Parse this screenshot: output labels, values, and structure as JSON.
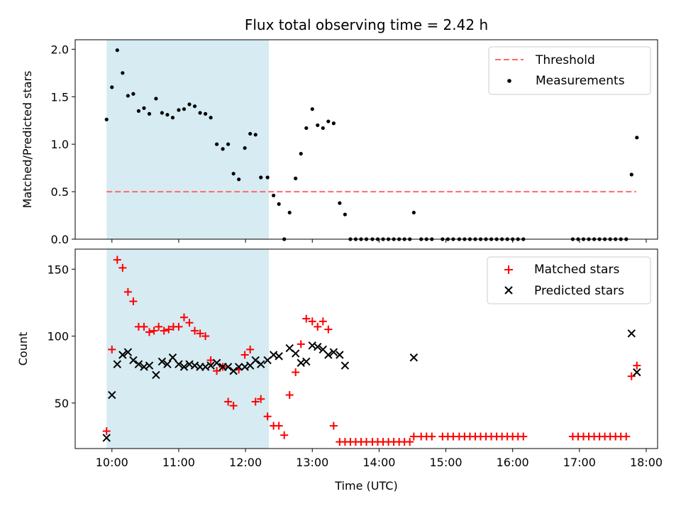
{
  "chart_data": [
    {
      "type": "scatter",
      "title": "Flux total observing time = 2.42 h",
      "ylabel": "Matched/Predicted stars",
      "xlim": [
        9.45,
        18.17
      ],
      "ylim": [
        0,
        2.1
      ],
      "yticks": [
        0.0,
        0.5,
        1.0,
        1.5,
        2.0
      ],
      "ytick_labels": [
        "0.0",
        "0.5",
        "1.0",
        "1.5",
        "2.0"
      ],
      "shaded_span": {
        "x_start": 9.92,
        "x_end": 12.35,
        "color": "#add8e6"
      },
      "threshold": {
        "name": "Threshold",
        "value": 0.5,
        "x_start": 9.92,
        "x_end": 17.85,
        "color": "#ff6b6b"
      },
      "legend": {
        "placement": "top-right",
        "entries": [
          "Threshold",
          "Measurements"
        ]
      },
      "series": [
        {
          "name": "Measurements",
          "marker": "dot",
          "color": "#000000",
          "x": [
            9.92,
            10.0,
            10.08,
            10.16,
            10.24,
            10.32,
            10.4,
            10.48,
            10.56,
            10.66,
            10.75,
            10.83,
            10.91,
            11.0,
            11.08,
            11.16,
            11.24,
            11.32,
            11.4,
            11.48,
            11.57,
            11.66,
            11.74,
            11.82,
            11.9,
            11.99,
            12.07,
            12.15,
            12.23,
            12.33,
            12.42,
            12.5,
            12.58,
            12.66,
            12.75,
            12.83,
            12.91,
            13.0,
            13.08,
            13.16,
            13.24,
            13.32,
            13.41,
            13.49,
            13.57,
            13.65,
            13.73,
            13.81,
            13.9,
            13.98,
            14.06,
            14.14,
            14.22,
            14.3,
            14.38,
            14.46,
            14.52,
            14.63,
            14.71,
            14.79,
            14.95,
            15.03,
            15.11,
            15.2,
            15.28,
            15.36,
            15.44,
            15.52,
            15.6,
            15.68,
            15.76,
            15.84,
            15.92,
            16.0,
            16.08,
            16.16,
            16.9,
            16.98,
            17.06,
            17.14,
            17.22,
            17.3,
            17.38,
            17.46,
            17.54,
            17.62,
            17.7,
            17.78,
            17.86
          ],
          "y": [
            1.26,
            1.6,
            1.99,
            1.75,
            1.51,
            1.53,
            1.35,
            1.38,
            1.32,
            1.48,
            1.33,
            1.31,
            1.28,
            1.36,
            1.37,
            1.42,
            1.4,
            1.33,
            1.32,
            1.28,
            1.0,
            0.95,
            1.0,
            0.69,
            0.63,
            0.96,
            1.11,
            1.1,
            0.65,
            0.65,
            0.46,
            0.37,
            0.0,
            0.28,
            0.64,
            0.9,
            1.17,
            1.37,
            1.2,
            1.17,
            1.24,
            1.22,
            0.38,
            0.26,
            0.0,
            0.0,
            0.0,
            0.0,
            0.0,
            0.0,
            0.0,
            0.0,
            0.0,
            0.0,
            0.0,
            0.0,
            0.28,
            0.0,
            0.0,
            0.0,
            0.0,
            0.0,
            0.0,
            0.0,
            0.0,
            0.0,
            0.0,
            0.0,
            0.0,
            0.0,
            0.0,
            0.0,
            0.0,
            0.0,
            0.0,
            0.0,
            0.0,
            0.0,
            0.0,
            0.0,
            0.0,
            0.0,
            0.0,
            0.0,
            0.0,
            0.0,
            0.0,
            0.68,
            1.07
          ]
        }
      ]
    },
    {
      "type": "scatter",
      "ylabel": "Count",
      "xlabel": "Time (UTC)",
      "xlim": [
        9.45,
        18.17
      ],
      "ylim": [
        16,
        165
      ],
      "xticks": [
        10,
        11,
        12,
        13,
        14,
        15,
        16,
        17,
        18
      ],
      "xtick_labels": [
        "10:00",
        "11:00",
        "12:00",
        "13:00",
        "14:00",
        "15:00",
        "16:00",
        "17:00",
        "18:00"
      ],
      "yticks": [
        50,
        100,
        150
      ],
      "ytick_labels": [
        "50",
        "100",
        "150"
      ],
      "shaded_span": {
        "x_start": 9.92,
        "x_end": 12.35,
        "color": "#add8e6"
      },
      "legend": {
        "placement": "top-right",
        "entries": [
          "Matched stars",
          "Predicted stars"
        ]
      },
      "series": [
        {
          "name": "Matched stars",
          "marker": "plus",
          "color": "#ff0000",
          "x": [
            9.92,
            10.0,
            10.08,
            10.16,
            10.24,
            10.32,
            10.4,
            10.48,
            10.56,
            10.63,
            10.7,
            10.78,
            10.85,
            10.92,
            11.0,
            11.08,
            11.16,
            11.24,
            11.32,
            11.4,
            11.48,
            11.57,
            11.66,
            11.74,
            11.82,
            11.9,
            11.99,
            12.07,
            12.15,
            12.23,
            12.33,
            12.42,
            12.5,
            12.58,
            12.66,
            12.75,
            12.83,
            12.91,
            13.0,
            13.08,
            13.16,
            13.24,
            13.32,
            13.41,
            13.49,
            13.57,
            13.65,
            13.73,
            13.81,
            13.9,
            13.98,
            14.06,
            14.14,
            14.22,
            14.3,
            14.38,
            14.46,
            14.52,
            14.63,
            14.71,
            14.79,
            14.95,
            15.03,
            15.11,
            15.2,
            15.28,
            15.36,
            15.44,
            15.52,
            15.6,
            15.68,
            15.76,
            15.84,
            15.92,
            16.0,
            16.08,
            16.16,
            16.9,
            16.98,
            17.06,
            17.14,
            17.22,
            17.3,
            17.38,
            17.46,
            17.54,
            17.62,
            17.7,
            17.78,
            17.86
          ],
          "y": [
            29,
            90,
            157,
            151,
            133,
            126,
            107,
            107,
            103,
            104,
            107,
            104,
            105,
            107,
            107,
            114,
            110,
            104,
            102,
            100,
            82,
            74,
            77,
            51,
            48,
            75,
            86,
            90,
            51,
            53,
            40,
            33,
            33,
            26,
            56,
            73,
            94,
            113,
            111,
            107,
            111,
            105,
            33,
            21,
            21,
            21,
            21,
            21,
            21,
            21,
            21,
            21,
            21,
            21,
            21,
            21,
            21,
            25,
            25,
            25,
            25,
            25,
            25,
            25,
            25,
            25,
            25,
            25,
            25,
            25,
            25,
            25,
            25,
            25,
            25,
            25,
            25,
            25,
            25,
            25,
            25,
            25,
            25,
            25,
            25,
            25,
            25,
            25,
            70,
            78
          ]
        },
        {
          "name": "Predicted stars",
          "marker": "x",
          "color": "#000000",
          "x": [
            9.92,
            10.0,
            10.08,
            10.16,
            10.24,
            10.32,
            10.4,
            10.48,
            10.56,
            10.66,
            10.75,
            10.83,
            10.91,
            11.0,
            11.08,
            11.16,
            11.24,
            11.32,
            11.4,
            11.48,
            11.57,
            11.66,
            11.74,
            11.82,
            11.9,
            11.99,
            12.07,
            12.15,
            12.23,
            12.33,
            12.42,
            12.5,
            12.66,
            12.75,
            12.83,
            12.91,
            13.0,
            13.08,
            13.16,
            13.24,
            13.32,
            13.41,
            13.49,
            14.52,
            17.78,
            17.86
          ],
          "y": [
            24,
            56,
            79,
            86,
            88,
            82,
            79,
            77,
            78,
            71,
            81,
            79,
            84,
            79,
            77,
            79,
            78,
            77,
            77,
            78,
            80,
            77,
            77,
            74,
            77,
            77,
            78,
            82,
            79,
            82,
            86,
            85,
            91,
            87,
            80,
            81,
            93,
            92,
            90,
            86,
            88,
            86,
            78,
            84,
            102,
            73
          ]
        }
      ]
    }
  ]
}
